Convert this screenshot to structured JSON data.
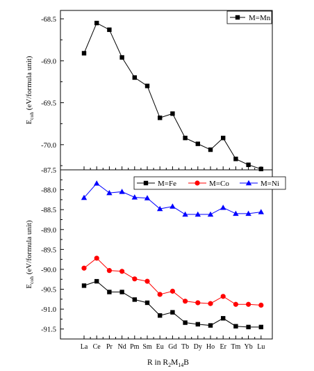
{
  "chart_data": [
    {
      "type": "line",
      "categories": [
        "La",
        "Ce",
        "Pr",
        "Nd",
        "Pm",
        "Sm",
        "Eu",
        "Gd",
        "Tb",
        "Dy",
        "Ho",
        "Er",
        "Tm",
        "Yb",
        "Lu"
      ],
      "ylabel": "E_coh (eV/formula unit)",
      "ylim": [
        -70.3,
        -68.4
      ],
      "yticks": [
        -68.5,
        -69.0,
        -69.5,
        -70.0
      ],
      "ytick_labels": [
        "-68.5",
        "-69.0",
        "-69.5",
        "-70.0"
      ],
      "legend_position": "top-right",
      "series": [
        {
          "name": "M=Mn",
          "color": "#000000",
          "marker": "square",
          "values": [
            -68.91,
            -68.55,
            -68.63,
            -68.96,
            -69.2,
            -69.3,
            -69.68,
            -69.63,
            -69.92,
            -69.99,
            -70.06,
            -69.92,
            -70.17,
            -70.24,
            -70.29
          ]
        }
      ]
    },
    {
      "type": "line",
      "categories": [
        "La",
        "Ce",
        "Pr",
        "Nd",
        "Pm",
        "Sm",
        "Eu",
        "Gd",
        "Tb",
        "Dy",
        "Ho",
        "Er",
        "Tm",
        "Yb",
        "Lu"
      ],
      "ylabel": "E_coh (eV/formula unit)",
      "xlabel": "R in R2M14B",
      "ylim": [
        -91.75,
        -87.5
      ],
      "yticks": [
        -87.5,
        -88.0,
        -88.5,
        -89.0,
        -89.5,
        -90.0,
        -90.5,
        -91.0,
        -91.5
      ],
      "ytick_labels": [
        "-87.5",
        "-88.0",
        "-88.5",
        "-89.0",
        "-89.5",
        "-90.0",
        "-90.5",
        "-91.0",
        "-91.5"
      ],
      "legend_position": "top",
      "series": [
        {
          "name": "M=Fe",
          "color": "#000000",
          "marker": "square",
          "values": [
            -90.41,
            -90.3,
            -90.57,
            -90.57,
            -90.76,
            -90.84,
            -91.16,
            -91.08,
            -91.34,
            -91.38,
            -91.41,
            -91.23,
            -91.43,
            -91.45,
            -91.45
          ]
        },
        {
          "name": "M=Co",
          "color": "#ff0000",
          "marker": "circle",
          "values": [
            -89.97,
            -89.72,
            -90.03,
            -90.05,
            -90.24,
            -90.3,
            -90.63,
            -90.55,
            -90.8,
            -90.84,
            -90.86,
            -90.68,
            -90.88,
            -90.88,
            -90.9
          ]
        },
        {
          "name": "M=Ni",
          "color": "#0000ff",
          "marker": "triangle",
          "values": [
            -88.2,
            -87.84,
            -88.08,
            -88.05,
            -88.19,
            -88.21,
            -88.48,
            -88.42,
            -88.62,
            -88.62,
            -88.62,
            -88.45,
            -88.6,
            -88.6,
            -88.56
          ]
        }
      ]
    }
  ]
}
